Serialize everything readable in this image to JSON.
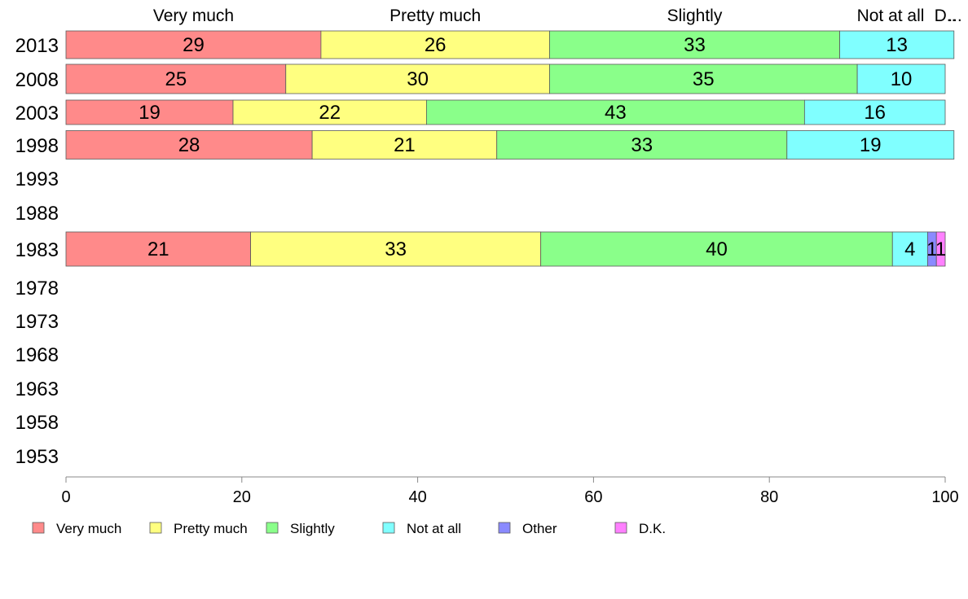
{
  "chart_data": {
    "type": "bar",
    "orientation": "horizontal",
    "stacked": true,
    "categories": [
      "2013",
      "2008",
      "2003",
      "1998",
      "1993",
      "1988",
      "1983",
      "1978",
      "1973",
      "1968",
      "1963",
      "1958",
      "1953"
    ],
    "series": [
      {
        "name": "Very much",
        "color": "#ff8a8a",
        "values": [
          29,
          25,
          19,
          28,
          null,
          null,
          21,
          null,
          null,
          null,
          null,
          null,
          null
        ]
      },
      {
        "name": "Pretty much",
        "color": "#ffff80",
        "values": [
          26,
          30,
          22,
          21,
          null,
          null,
          33,
          null,
          null,
          null,
          null,
          null,
          null
        ]
      },
      {
        "name": "Slightly",
        "color": "#8aff8a",
        "values": [
          33,
          35,
          43,
          33,
          null,
          null,
          40,
          null,
          null,
          null,
          null,
          null,
          null
        ]
      },
      {
        "name": "Not at all",
        "color": "#80ffff",
        "values": [
          13,
          10,
          16,
          19,
          null,
          null,
          4,
          null,
          null,
          null,
          null,
          null,
          null
        ]
      },
      {
        "name": "Other",
        "color": "#8a8aff",
        "values": [
          0,
          0,
          0,
          0,
          null,
          null,
          1,
          null,
          null,
          null,
          null,
          null,
          null
        ]
      },
      {
        "name": "D.K.",
        "color": "#ff80ff",
        "values": [
          0,
          0,
          0,
          0,
          null,
          null,
          1,
          null,
          null,
          null,
          null,
          null,
          null
        ]
      }
    ],
    "top_labels": [
      "Very much",
      "Pretty much",
      "Slightly",
      "Not at all",
      "D..",
      "..."
    ],
    "xlim": [
      0,
      100
    ],
    "xticks": [
      0,
      20,
      40,
      60,
      80,
      100
    ],
    "grid": false,
    "legend_position": "bottom"
  }
}
